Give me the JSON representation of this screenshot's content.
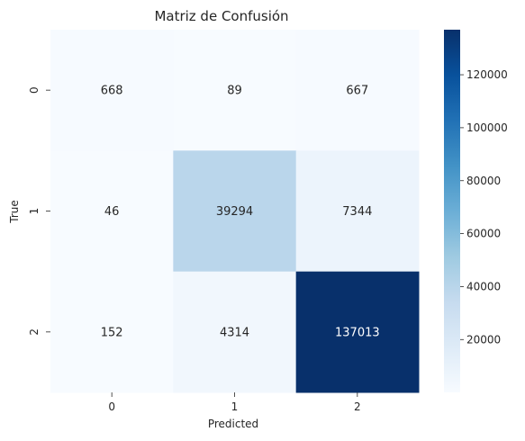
{
  "chart_data": {
    "type": "heatmap",
    "title": "Matriz de Confusión",
    "xlabel": "Predicted",
    "ylabel": "True",
    "x_categories": [
      "0",
      "1",
      "2"
    ],
    "y_categories": [
      "0",
      "1",
      "2"
    ],
    "values": [
      [
        668,
        89,
        667
      ],
      [
        46,
        39294,
        7344
      ],
      [
        152,
        4314,
        137013
      ]
    ],
    "value_labels": [
      [
        "668",
        "89",
        "667"
      ],
      [
        "46",
        "39294",
        "7344"
      ],
      [
        "152",
        "4314",
        "137013"
      ]
    ],
    "colormap": "Blues",
    "colorbar": {
      "range": [
        46,
        137013
      ],
      "ticks": [
        20000,
        40000,
        60000,
        80000,
        100000,
        120000
      ],
      "tick_labels": [
        "20000",
        "40000",
        "60000",
        "80000",
        "100000",
        "120000"
      ]
    },
    "grid": false,
    "legend": "colorbar-right"
  }
}
